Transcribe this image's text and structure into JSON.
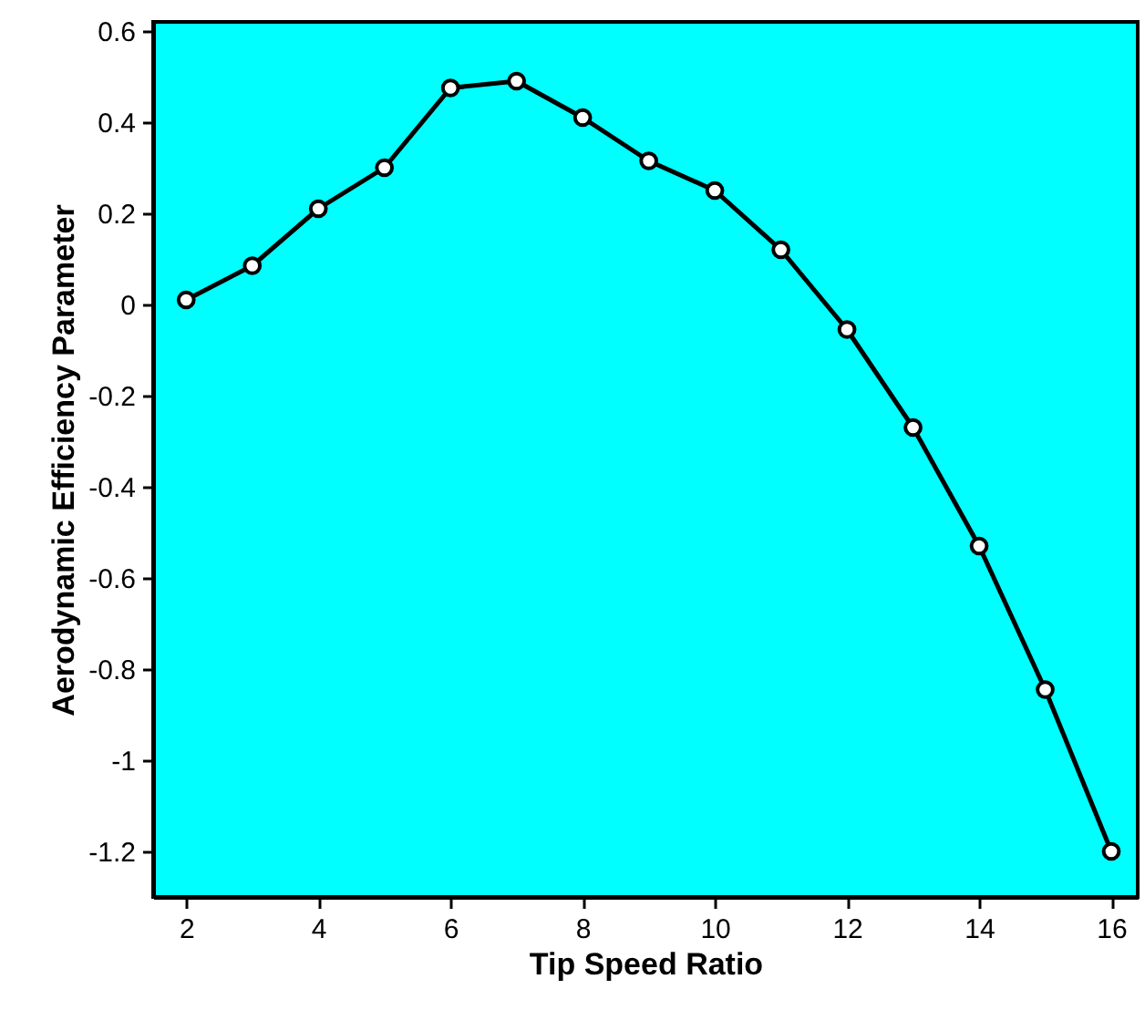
{
  "chart_data": {
    "type": "line",
    "xlabel": "Tip Speed Ratio",
    "ylabel": "Aerodynamic Efficiency Parameter",
    "x": [
      2,
      3,
      4,
      5,
      6,
      7,
      8,
      9,
      10,
      11,
      12,
      13,
      14,
      15,
      16
    ],
    "series": [
      {
        "color": "#000000",
        "values": [
          0.01,
          0.085,
          0.21,
          0.3,
          0.475,
          0.49,
          0.41,
          0.315,
          0.25,
          0.12,
          -0.055,
          -0.27,
          -0.53,
          -0.845,
          -1.2
        ]
      }
    ],
    "xlim": [
      1.5,
      16.4
    ],
    "ylim": [
      -1.3,
      0.62
    ],
    "xticks": [
      2,
      4,
      6,
      8,
      10,
      12,
      14,
      16
    ],
    "yticks": [
      -1.2,
      -1,
      -0.8,
      -0.6,
      -0.4,
      -0.2,
      0,
      0.2,
      0.4,
      0.6
    ],
    "grid": false,
    "marker": "circle",
    "line_style": "solid"
  }
}
